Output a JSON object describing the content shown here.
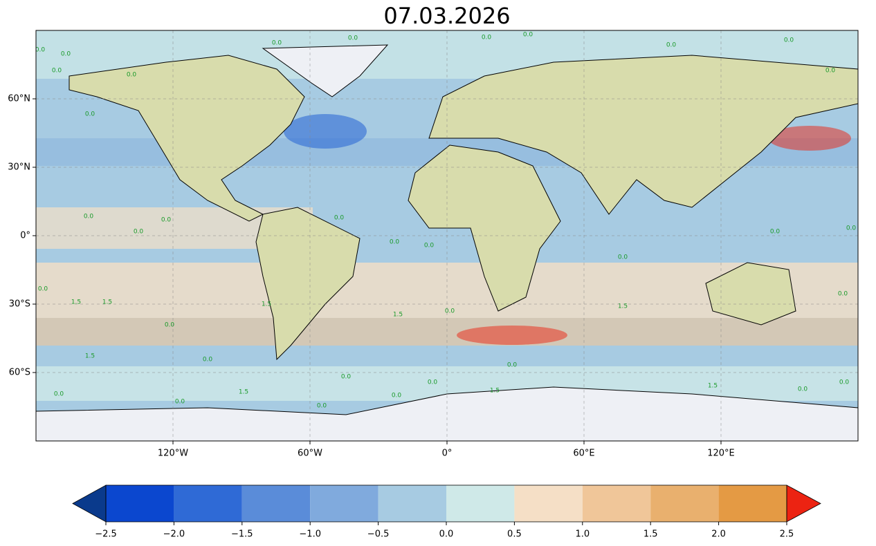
{
  "title": "07.03.2026",
  "map": {
    "lonlim": [
      -180,
      180
    ],
    "latlim": [
      -90,
      90
    ],
    "lon_ticks": [
      {
        "value": -120,
        "label": "120°W"
      },
      {
        "value": -60,
        "label": "60°W"
      },
      {
        "value": 0,
        "label": "0°"
      },
      {
        "value": 60,
        "label": "60°E"
      },
      {
        "value": 120,
        "label": "120°E"
      }
    ],
    "lat_ticks": [
      {
        "value": 60,
        "label": "60°N"
      },
      {
        "value": 30,
        "label": "30°N"
      },
      {
        "value": 0,
        "label": "0°"
      },
      {
        "value": -30,
        "label": "30°S"
      },
      {
        "value": -60,
        "label": "60°S"
      }
    ],
    "grid": true
  },
  "contour_labels": [
    "0.0",
    "1.5"
  ],
  "colorbar": {
    "lim": [
      -2.5,
      2.5
    ],
    "ticks": [
      {
        "value": -2.5,
        "label": "−2.5"
      },
      {
        "value": -2.0,
        "label": "−2.0"
      },
      {
        "value": -1.5,
        "label": "−1.5"
      },
      {
        "value": -1.0,
        "label": "−1.0"
      },
      {
        "value": -0.5,
        "label": "−0.5"
      },
      {
        "value": 0.0,
        "label": "0.0"
      },
      {
        "value": 0.5,
        "label": "0.5"
      },
      {
        "value": 1.0,
        "label": "1.0"
      },
      {
        "value": 1.5,
        "label": "1.5"
      },
      {
        "value": 2.0,
        "label": "2.0"
      },
      {
        "value": 2.5,
        "label": "2.5"
      }
    ],
    "colors": [
      "#0b47cf",
      "#2f6ad6",
      "#5a8cd9",
      "#80aadd",
      "#a7cbe2",
      "#cfe9e8",
      "#f5dfc6",
      "#f0c699",
      "#e9b06e",
      "#e49a44"
    ],
    "under_color": "#0a3a8c",
    "over_color": "#ec2312"
  }
}
